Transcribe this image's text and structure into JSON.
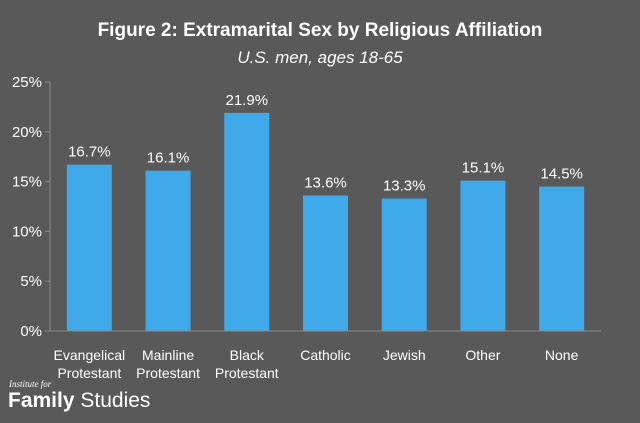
{
  "chart_data": {
    "type": "bar",
    "title": "Figure 2: Extramarital Sex by Religious Affiliation",
    "subtitle": "U.S. men, ages 18-65",
    "categories": [
      [
        "Evangelical",
        "Protestant"
      ],
      [
        "Mainline",
        "Protestant"
      ],
      [
        "Black",
        "Protestant"
      ],
      [
        "Catholic"
      ],
      [
        "Jewish"
      ],
      [
        "Other"
      ],
      [
        "None"
      ]
    ],
    "values": [
      16.7,
      16.1,
      21.9,
      13.6,
      13.3,
      15.1,
      14.5
    ],
    "data_labels": [
      "16.7%",
      "16.1%",
      "21.9%",
      "13.6%",
      "13.3%",
      "15.1%",
      "14.5%"
    ],
    "ylim": [
      0,
      25
    ],
    "yticks": [
      0,
      5,
      10,
      15,
      20,
      25
    ],
    "ytick_labels": [
      "0%",
      "5%",
      "10%",
      "15%",
      "20%",
      "25%"
    ],
    "xlabel": "",
    "ylabel": "",
    "grid": false,
    "legend": false,
    "bar_color": "#3fa9ea",
    "axis_color": "#8c8c8c",
    "background_color": "#595959"
  },
  "logo": {
    "small_text": "Institute for",
    "word1": "Family",
    "word2": "Studies"
  }
}
